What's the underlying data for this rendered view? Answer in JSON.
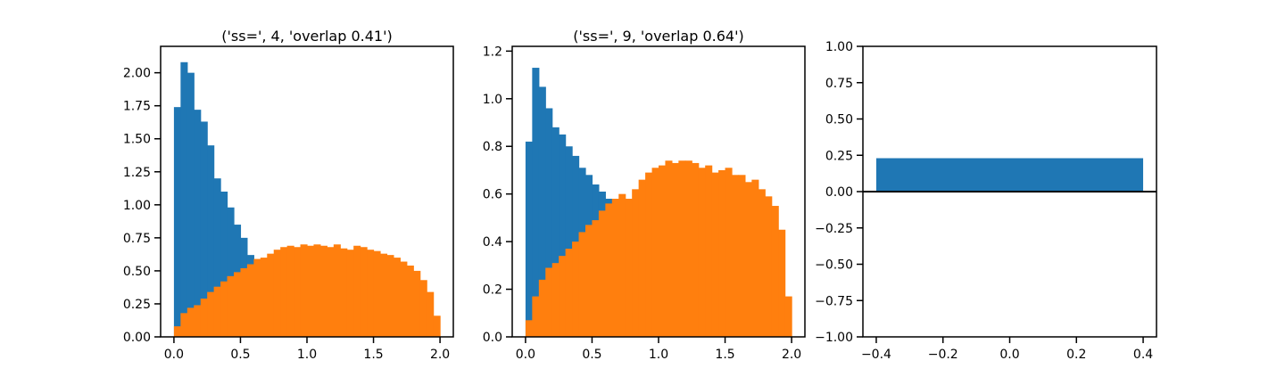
{
  "colors": {
    "series_blue": "#1f77b4",
    "series_orange": "#ff7f0e",
    "axis": "#000000",
    "background": "#ffffff"
  },
  "chart_data": [
    {
      "type": "histogram",
      "title": "('ss=', 4, 'overlap 0.41')",
      "xlim": [
        -0.1,
        2.1
      ],
      "ylim": [
        0,
        2.2
      ],
      "xticks": [
        0.0,
        0.5,
        1.0,
        1.5,
        2.0
      ],
      "xtick_labels": [
        "0.0",
        "0.5",
        "1.0",
        "1.5",
        "2.0"
      ],
      "yticks": [
        0.0,
        0.25,
        0.5,
        0.75,
        1.0,
        1.25,
        1.5,
        1.75,
        2.0
      ],
      "ytick_labels": [
        "0.00",
        "0.25",
        "0.50",
        "0.75",
        "1.00",
        "1.25",
        "1.50",
        "1.75",
        "2.00"
      ],
      "grid": false,
      "bin_edges": [
        0.0,
        0.05,
        0.1,
        0.15,
        0.2,
        0.25,
        0.3,
        0.35,
        0.4,
        0.45,
        0.5,
        0.55,
        0.6,
        0.65,
        0.7,
        0.75,
        0.8,
        0.85,
        0.9,
        0.95,
        1.0,
        1.05,
        1.1,
        1.15,
        1.2,
        1.25,
        1.3,
        1.35,
        1.4,
        1.45,
        1.5,
        1.55,
        1.6,
        1.65,
        1.7,
        1.75,
        1.8,
        1.85,
        1.9,
        1.95,
        2.0
      ],
      "series": [
        {
          "color_key": "series_blue",
          "values": [
            1.74,
            2.08,
            2.0,
            1.72,
            1.63,
            1.45,
            1.2,
            1.1,
            0.98,
            0.85,
            0.75,
            0.62,
            0.56,
            0.5,
            0.44,
            0.38,
            0.31,
            0.25,
            0.19,
            0.14,
            0.1,
            0.07,
            0.05,
            0.03,
            0.02,
            0.01,
            0.01,
            0,
            0,
            0,
            0,
            0,
            0,
            0,
            0,
            0,
            0,
            0,
            0,
            0
          ]
        },
        {
          "color_key": "series_orange",
          "values": [
            0.08,
            0.18,
            0.22,
            0.24,
            0.29,
            0.34,
            0.38,
            0.42,
            0.46,
            0.49,
            0.52,
            0.55,
            0.59,
            0.6,
            0.63,
            0.66,
            0.68,
            0.69,
            0.68,
            0.7,
            0.69,
            0.7,
            0.69,
            0.68,
            0.7,
            0.67,
            0.66,
            0.69,
            0.68,
            0.66,
            0.65,
            0.63,
            0.62,
            0.6,
            0.57,
            0.54,
            0.5,
            0.43,
            0.34,
            0.16
          ]
        }
      ]
    },
    {
      "type": "histogram",
      "title": "('ss=', 9, 'overlap 0.64')",
      "xlim": [
        -0.1,
        2.1
      ],
      "ylim": [
        0,
        1.22
      ],
      "xticks": [
        0.0,
        0.5,
        1.0,
        1.5,
        2.0
      ],
      "xtick_labels": [
        "0.0",
        "0.5",
        "1.0",
        "1.5",
        "2.0"
      ],
      "yticks": [
        0.0,
        0.2,
        0.4,
        0.6,
        0.8,
        1.0,
        1.2
      ],
      "ytick_labels": [
        "0.0",
        "0.2",
        "0.4",
        "0.6",
        "0.8",
        "1.0",
        "1.2"
      ],
      "grid": false,
      "bin_edges": [
        0.0,
        0.05,
        0.1,
        0.15,
        0.2,
        0.25,
        0.3,
        0.35,
        0.4,
        0.45,
        0.5,
        0.55,
        0.6,
        0.65,
        0.7,
        0.75,
        0.8,
        0.85,
        0.9,
        0.95,
        1.0,
        1.05,
        1.1,
        1.15,
        1.2,
        1.25,
        1.3,
        1.35,
        1.4,
        1.45,
        1.5,
        1.55,
        1.6,
        1.65,
        1.7,
        1.75,
        1.8,
        1.85,
        1.9,
        1.95,
        2.0
      ],
      "series": [
        {
          "color_key": "series_blue",
          "values": [
            0.82,
            1.13,
            1.05,
            0.96,
            0.88,
            0.85,
            0.8,
            0.76,
            0.71,
            0.68,
            0.64,
            0.61,
            0.58,
            0.55,
            0.5,
            0.43,
            0.36,
            0.3,
            0.25,
            0.2,
            0.15,
            0.11,
            0.08,
            0.06,
            0.04,
            0.03,
            0.02,
            0.01,
            0,
            0,
            0,
            0,
            0,
            0,
            0,
            0,
            0,
            0,
            0,
            0
          ]
        },
        {
          "color_key": "series_orange",
          "values": [
            0.07,
            0.17,
            0.24,
            0.29,
            0.31,
            0.34,
            0.37,
            0.4,
            0.44,
            0.47,
            0.49,
            0.53,
            0.56,
            0.58,
            0.6,
            0.58,
            0.62,
            0.66,
            0.69,
            0.71,
            0.72,
            0.74,
            0.73,
            0.74,
            0.74,
            0.73,
            0.71,
            0.72,
            0.69,
            0.7,
            0.71,
            0.68,
            0.68,
            0.65,
            0.66,
            0.62,
            0.59,
            0.55,
            0.45,
            0.17
          ]
        }
      ]
    },
    {
      "type": "bar",
      "title": "",
      "xlim": [
        -0.44,
        0.44
      ],
      "ylim": [
        -1.0,
        1.0
      ],
      "xticks": [
        -0.4,
        -0.2,
        0.0,
        0.2,
        0.4
      ],
      "xtick_labels": [
        "−0.4",
        "−0.2",
        "0.0",
        "0.2",
        "0.4"
      ],
      "yticks": [
        -1.0,
        -0.75,
        -0.5,
        -0.25,
        0.0,
        0.25,
        0.5,
        0.75,
        1.0
      ],
      "ytick_labels": [
        "−1.00",
        "−0.75",
        "−0.50",
        "−0.25",
        "0.00",
        "0.25",
        "0.50",
        "0.75",
        "1.00"
      ],
      "grid": false,
      "zero_line": true,
      "bars": [
        {
          "x": 0.0,
          "width": 0.8,
          "value": 0.23,
          "color_key": "series_blue"
        }
      ]
    }
  ]
}
